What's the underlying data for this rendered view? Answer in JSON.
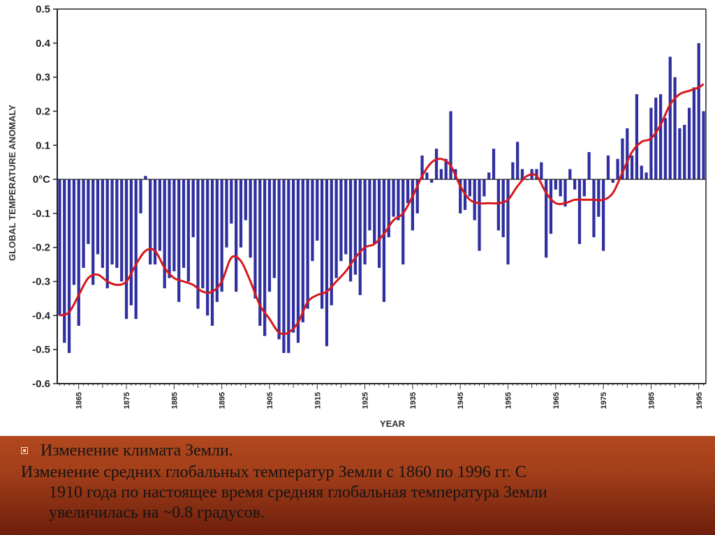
{
  "chart_data": {
    "type": "bar",
    "title": "",
    "xlabel": "YEAR",
    "ylabel": "GLOBAL TEMPERATURE ANOMALY",
    "ylim": [
      -0.6,
      0.5
    ],
    "xlim": [
      1861,
      1996
    ],
    "y_ticks": [
      "0.5",
      "0.4",
      "0.3",
      "0.2",
      "0.1",
      "0°C",
      "-0.1",
      "-0.2",
      "-0.3",
      "-0.4",
      "-0.5",
      "-0.6"
    ],
    "x_ticks": [
      "1865",
      "1875",
      "1885",
      "1895",
      "1905",
      "1915",
      "1925",
      "1935",
      "1945",
      "1955",
      "1965",
      "1975",
      "1985",
      "1995"
    ],
    "grid": false,
    "bar_color": "#2f2fa0",
    "line_color": "#d8181c",
    "series": [
      {
        "type": "bar",
        "x": [
          1861,
          1862,
          1863,
          1864,
          1865,
          1866,
          1867,
          1868,
          1869,
          1870,
          1871,
          1872,
          1873,
          1874,
          1875,
          1876,
          1877,
          1878,
          1879,
          1880,
          1881,
          1882,
          1883,
          1884,
          1885,
          1886,
          1887,
          1888,
          1889,
          1890,
          1891,
          1892,
          1893,
          1894,
          1895,
          1896,
          1897,
          1898,
          1899,
          1900,
          1901,
          1902,
          1903,
          1904,
          1905,
          1906,
          1907,
          1908,
          1909,
          1910,
          1911,
          1912,
          1913,
          1914,
          1915,
          1916,
          1917,
          1918,
          1919,
          1920,
          1921,
          1922,
          1923,
          1924,
          1925,
          1926,
          1927,
          1928,
          1929,
          1930,
          1931,
          1932,
          1933,
          1934,
          1935,
          1936,
          1937,
          1938,
          1939,
          1940,
          1941,
          1942,
          1943,
          1944,
          1945,
          1946,
          1947,
          1948,
          1949,
          1950,
          1951,
          1952,
          1953,
          1954,
          1955,
          1956,
          1957,
          1958,
          1959,
          1960,
          1961,
          1962,
          1963,
          1964,
          1965,
          1966,
          1967,
          1968,
          1969,
          1970,
          1971,
          1972,
          1973,
          1974,
          1975,
          1976,
          1977,
          1978,
          1979,
          1980,
          1981,
          1982,
          1983,
          1984,
          1985,
          1986,
          1987,
          1988,
          1989,
          1990,
          1991,
          1992,
          1993,
          1994,
          1995,
          1996
        ],
        "values": [
          -0.4,
          -0.48,
          -0.51,
          -0.31,
          -0.43,
          -0.26,
          -0.19,
          -0.31,
          -0.22,
          -0.26,
          -0.32,
          -0.25,
          -0.26,
          -0.3,
          -0.41,
          -0.37,
          -0.41,
          -0.1,
          0.01,
          -0.25,
          -0.25,
          -0.21,
          -0.32,
          -0.29,
          -0.27,
          -0.36,
          -0.26,
          -0.3,
          -0.17,
          -0.38,
          -0.32,
          -0.4,
          -0.43,
          -0.36,
          -0.33,
          -0.2,
          -0.13,
          -0.33,
          -0.2,
          -0.12,
          -0.23,
          -0.35,
          -0.43,
          -0.46,
          -0.33,
          -0.29,
          -0.47,
          -0.51,
          -0.51,
          -0.45,
          -0.48,
          -0.42,
          -0.38,
          -0.24,
          -0.18,
          -0.38,
          -0.49,
          -0.37,
          -0.29,
          -0.24,
          -0.22,
          -0.3,
          -0.28,
          -0.34,
          -0.25,
          -0.15,
          -0.19,
          -0.26,
          -0.36,
          -0.17,
          -0.11,
          -0.12,
          -0.25,
          -0.07,
          -0.15,
          -0.1,
          0.07,
          0.02,
          -0.01,
          0.09,
          0.03,
          0.06,
          0.2,
          0.03,
          -0.1,
          -0.09,
          -0.05,
          -0.12,
          -0.21,
          -0.05,
          0.02,
          0.09,
          -0.15,
          -0.17,
          -0.25,
          0.05,
          0.11,
          0.03,
          0.0,
          0.03,
          0.03,
          0.05,
          -0.23,
          -0.16,
          -0.03,
          -0.05,
          -0.08,
          0.03,
          -0.03,
          -0.19,
          -0.05,
          0.08,
          -0.17,
          -0.11,
          -0.21,
          0.07,
          -0.01,
          0.06,
          0.12,
          0.15,
          0.07,
          0.25,
          0.04,
          0.02,
          0.21,
          0.24,
          0.25,
          0.18,
          0.36,
          0.3,
          0.15,
          0.16,
          0.21,
          0.27,
          0.4,
          0.2
        ]
      },
      {
        "type": "line",
        "name": "",
        "x": [
          1861,
          1863,
          1865,
          1867,
          1869,
          1871,
          1873,
          1875,
          1877,
          1879,
          1881,
          1883,
          1885,
          1887,
          1889,
          1891,
          1893,
          1895,
          1897,
          1899,
          1901,
          1903,
          1905,
          1907,
          1909,
          1911,
          1913,
          1915,
          1917,
          1919,
          1921,
          1923,
          1925,
          1927,
          1929,
          1931,
          1933,
          1935,
          1937,
          1939,
          1941,
          1943,
          1945,
          1947,
          1949,
          1951,
          1953,
          1955,
          1957,
          1959,
          1961,
          1963,
          1965,
          1967,
          1969,
          1971,
          1973,
          1975,
          1977,
          1979,
          1981,
          1983,
          1985,
          1987,
          1989,
          1991,
          1993,
          1995,
          1996
        ],
        "values": [
          -0.4,
          -0.39,
          -0.34,
          -0.29,
          -0.28,
          -0.3,
          -0.31,
          -0.3,
          -0.25,
          -0.21,
          -0.21,
          -0.26,
          -0.29,
          -0.3,
          -0.31,
          -0.33,
          -0.33,
          -0.3,
          -0.23,
          -0.24,
          -0.3,
          -0.37,
          -0.41,
          -0.45,
          -0.45,
          -0.42,
          -0.36,
          -0.34,
          -0.33,
          -0.3,
          -0.27,
          -0.23,
          -0.2,
          -0.19,
          -0.16,
          -0.12,
          -0.1,
          -0.05,
          0.01,
          0.05,
          0.06,
          0.04,
          -0.02,
          -0.06,
          -0.07,
          -0.07,
          -0.07,
          -0.06,
          -0.02,
          0.01,
          0.01,
          -0.04,
          -0.07,
          -0.07,
          -0.06,
          -0.06,
          -0.06,
          -0.06,
          -0.04,
          0.02,
          0.08,
          0.11,
          0.12,
          0.16,
          0.22,
          0.25,
          0.26,
          0.27,
          0.28
        ]
      }
    ]
  },
  "caption": {
    "heading": "Изменение климата Земли.",
    "line1": "Изменение средних глобальных температур Земли с 1860 по 1996 гг. С",
    "line2": "1910 года по настоящее время средняя глобальная температура Земли",
    "line3": "увеличилась на ~0.8 градусов."
  }
}
